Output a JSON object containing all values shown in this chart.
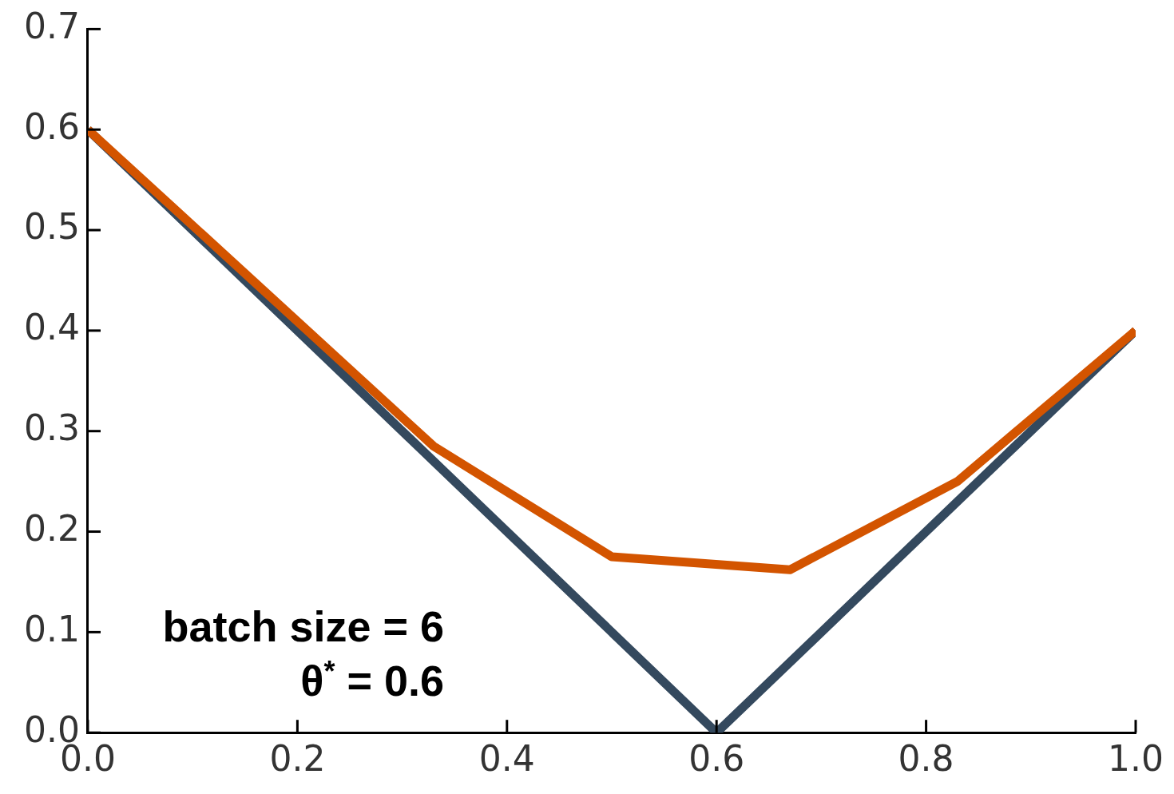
{
  "chart_data": {
    "type": "line",
    "series": [
      {
        "color": "#d35400",
        "x": [
          0,
          0.33,
          0.5,
          0.67,
          0.83,
          1
        ],
        "values": [
          0.6,
          0.285,
          0.175,
          0.162,
          0.25,
          0.4
        ]
      },
      {
        "color": "#34495e",
        "x": [
          0,
          0.6,
          1
        ],
        "values": [
          0.6,
          0,
          0.4
        ]
      }
    ],
    "xlim": [
      0,
      1
    ],
    "xticks": [
      {
        "value": 0,
        "label": "0.0"
      },
      {
        "value": 0.2,
        "label": "0.2"
      },
      {
        "value": 0.4,
        "label": "0.4"
      },
      {
        "value": 0.6,
        "label": "0.6"
      },
      {
        "value": 0.8,
        "label": "0.8"
      },
      {
        "value": 1,
        "label": "1.0"
      }
    ],
    "ylim": [
      0,
      0.7
    ],
    "yticks": [
      {
        "value": 0,
        "label": "0.0"
      },
      {
        "value": 0.1,
        "label": "0.1"
      },
      {
        "value": 0.2,
        "label": "0.2"
      },
      {
        "value": 0.3,
        "label": "0.3"
      },
      {
        "value": 0.4,
        "label": "0.4"
      },
      {
        "value": 0.5,
        "label": "0.5"
      },
      {
        "value": 0.6,
        "label": "0.6"
      },
      {
        "value": 0.7,
        "label": "0.7"
      }
    ],
    "grid": false,
    "legend": false,
    "marker": "none",
    "line_style": "solid",
    "annotations": [
      "batch size = 6",
      "θ$^{*}$ = 0.6"
    ]
  }
}
